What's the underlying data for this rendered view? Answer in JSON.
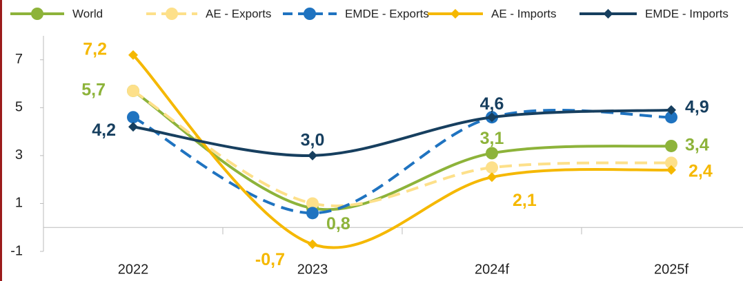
{
  "chart_data": {
    "type": "line",
    "categories": [
      "2022",
      "2023",
      "2024f",
      "2025f"
    ],
    "series": [
      {
        "name": "World",
        "color": "#8db33a",
        "marker": "circle",
        "dashed": false,
        "values": [
          5.7,
          0.8,
          3.1,
          3.4
        ],
        "value_labels": [
          "5,7",
          "0,8",
          "3,1",
          "3,4"
        ]
      },
      {
        "name": "AE - Exports",
        "color": "#fde08a",
        "marker": "circle",
        "dashed": true,
        "values": [
          5.7,
          1.0,
          2.5,
          2.7
        ]
      },
      {
        "name": "EMDE - Exports",
        "color": "#1f73c0",
        "marker": "circle",
        "dashed": true,
        "values": [
          4.6,
          0.6,
          4.6,
          4.6
        ]
      },
      {
        "name": "AE - Imports",
        "color": "#f5b800",
        "marker": "diamond",
        "dashed": false,
        "values": [
          7.2,
          -0.7,
          2.1,
          2.4
        ],
        "value_labels": [
          "7,2",
          "-0,7",
          "2,1",
          "2,4"
        ]
      },
      {
        "name": "EMDE - Imports",
        "color": "#173f5f",
        "marker": "diamond",
        "dashed": false,
        "values": [
          4.2,
          3.0,
          4.6,
          4.9
        ],
        "value_labels": [
          "4,2",
          "3,0",
          "4,6",
          "4,9"
        ]
      }
    ],
    "ylim": [
      -1,
      8
    ],
    "yticks": [
      -1,
      1,
      3,
      5,
      7
    ],
    "zero_line": true,
    "legend": "top"
  }
}
